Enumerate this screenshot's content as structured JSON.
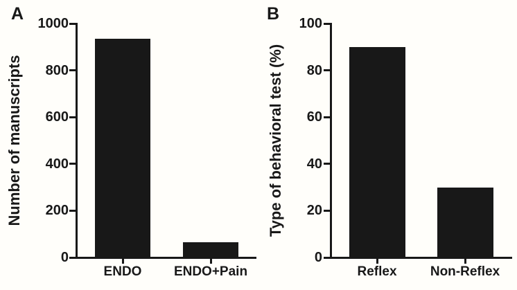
{
  "figure": {
    "background_color": "#fffefa",
    "ink_color": "#181818"
  },
  "chart_data": [
    {
      "type": "bar",
      "panel_label": "A",
      "title": "",
      "xlabel": "",
      "ylabel": "Number of manuscripts",
      "categories": [
        "ENDO",
        "ENDO+Pain"
      ],
      "values": [
        935,
        65
      ],
      "yticks": [
        0,
        200,
        400,
        600,
        800,
        1000
      ],
      "ylim": [
        0,
        1000
      ],
      "bar_color": "#181818",
      "grid": false,
      "legend": false
    },
    {
      "type": "bar",
      "panel_label": "B",
      "title": "",
      "xlabel": "",
      "ylabel": "Type of behavioral test (%)",
      "categories": [
        "Reflex",
        "Non-Reflex"
      ],
      "values": [
        90,
        30
      ],
      "yticks": [
        0,
        20,
        40,
        60,
        80,
        100
      ],
      "ylim": [
        0,
        100
      ],
      "bar_color": "#181818",
      "grid": false,
      "legend": false
    }
  ]
}
